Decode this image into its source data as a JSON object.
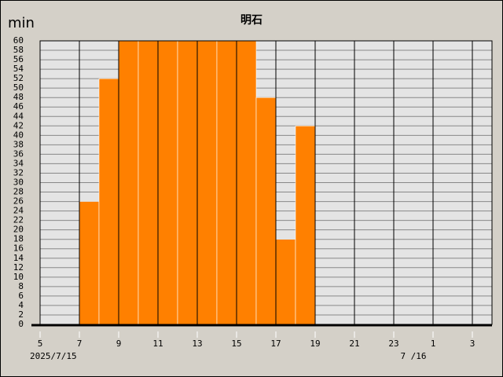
{
  "chart_data": {
    "type": "bar",
    "title": "明石",
    "y_unit": "min",
    "x": [
      5,
      6,
      7,
      8,
      9,
      10,
      11,
      12,
      13,
      14,
      15,
      16,
      17,
      18,
      19,
      20,
      21,
      22,
      23,
      24,
      25,
      26,
      27
    ],
    "values": [
      0,
      0,
      26,
      52,
      60,
      60,
      60,
      60,
      60,
      60,
      60,
      48,
      18,
      42,
      0,
      0,
      0,
      0,
      0,
      0,
      0,
      0,
      0
    ],
    "color": "#ff8000",
    "xlim": [
      5,
      28
    ],
    "xticks": [
      5,
      7,
      9,
      11,
      13,
      15,
      17,
      19,
      21,
      23,
      {
        "value": 25,
        "label": "1"
      },
      {
        "value": 27,
        "label": "3"
      }
    ],
    "date_labels": [
      {
        "value": 5,
        "label": "2025/7/15"
      },
      {
        "value": 24,
        "label": "7 /16"
      }
    ],
    "ylim": [
      0,
      60
    ],
    "yticks": [
      0,
      2,
      4,
      6,
      8,
      10,
      12,
      14,
      16,
      18,
      20,
      22,
      24,
      26,
      28,
      30,
      32,
      34,
      36,
      38,
      40,
      42,
      44,
      46,
      48,
      50,
      52,
      54,
      56,
      58,
      60
    ],
    "grid": true
  }
}
